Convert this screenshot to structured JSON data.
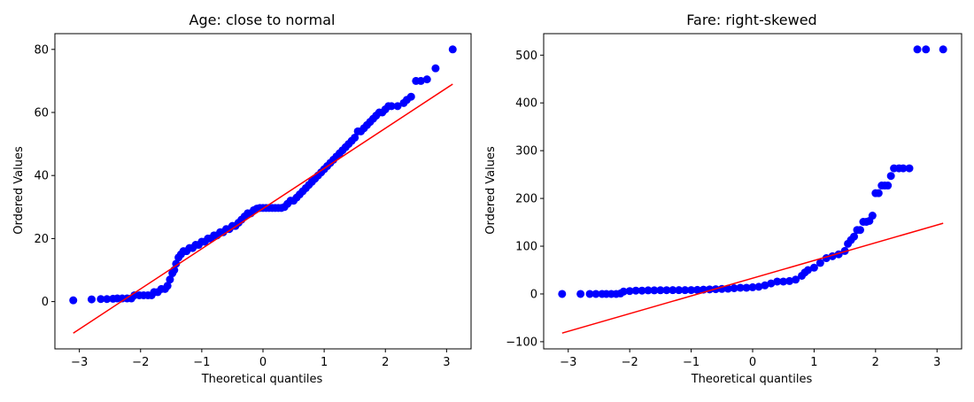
{
  "chart_data": [
    {
      "type": "scatter",
      "title": "Age: close to normal",
      "xlabel": "Theoretical quantiles",
      "ylabel": "Ordered Values",
      "xlim": [
        -3.4,
        3.4
      ],
      "ylim": [
        -15,
        85
      ],
      "xticks": [
        -3,
        -2,
        -1,
        0,
        1,
        2,
        3
      ],
      "yticks": [
        0,
        20,
        40,
        60,
        80
      ],
      "grid": false,
      "marker_color": "#0000ff",
      "line_color": "#ff0000",
      "fit_line": {
        "x": [
          -3.1,
          3.1
        ],
        "y": [
          -10,
          69
        ]
      },
      "points": [
        [
          -3.1,
          0.4
        ],
        [
          -2.8,
          0.7
        ],
        [
          -2.65,
          0.8
        ],
        [
          -2.55,
          0.8
        ],
        [
          -2.45,
          0.9
        ],
        [
          -2.38,
          1
        ],
        [
          -2.3,
          1
        ],
        [
          -2.22,
          1
        ],
        [
          -2.15,
          1
        ],
        [
          -2.1,
          2
        ],
        [
          -2.02,
          2
        ],
        [
          -1.95,
          2
        ],
        [
          -1.88,
          2
        ],
        [
          -1.82,
          2
        ],
        [
          -1.78,
          3
        ],
        [
          -1.72,
          3
        ],
        [
          -1.66,
          4
        ],
        [
          -1.6,
          4
        ],
        [
          -1.56,
          5
        ],
        [
          -1.52,
          7
        ],
        [
          -1.48,
          9
        ],
        [
          -1.45,
          10
        ],
        [
          -1.42,
          12
        ],
        [
          -1.38,
          14
        ],
        [
          -1.34,
          15
        ],
        [
          -1.3,
          16
        ],
        [
          -1.25,
          16
        ],
        [
          -1.2,
          17
        ],
        [
          -1.15,
          17
        ],
        [
          -1.1,
          18
        ],
        [
          -1.05,
          18
        ],
        [
          -1.0,
          19
        ],
        [
          -0.95,
          19
        ],
        [
          -0.9,
          20
        ],
        [
          -0.85,
          20
        ],
        [
          -0.8,
          21
        ],
        [
          -0.75,
          21
        ],
        [
          -0.7,
          22
        ],
        [
          -0.65,
          22
        ],
        [
          -0.6,
          23
        ],
        [
          -0.55,
          23
        ],
        [
          -0.5,
          24
        ],
        [
          -0.45,
          24
        ],
        [
          -0.4,
          25
        ],
        [
          -0.35,
          26
        ],
        [
          -0.3,
          27
        ],
        [
          -0.25,
          28
        ],
        [
          -0.2,
          28
        ],
        [
          -0.15,
          29
        ],
        [
          -0.1,
          29.5
        ],
        [
          -0.05,
          29.7
        ],
        [
          0.0,
          29.7
        ],
        [
          0.05,
          29.7
        ],
        [
          0.1,
          29.7
        ],
        [
          0.15,
          29.7
        ],
        [
          0.2,
          29.7
        ],
        [
          0.25,
          29.7
        ],
        [
          0.3,
          29.7
        ],
        [
          0.35,
          30
        ],
        [
          0.4,
          31
        ],
        [
          0.45,
          32
        ],
        [
          0.5,
          32
        ],
        [
          0.55,
          33
        ],
        [
          0.6,
          34
        ],
        [
          0.65,
          35
        ],
        [
          0.7,
          36
        ],
        [
          0.75,
          37
        ],
        [
          0.8,
          38
        ],
        [
          0.85,
          39
        ],
        [
          0.9,
          40
        ],
        [
          0.95,
          41
        ],
        [
          1.0,
          42
        ],
        [
          1.05,
          43
        ],
        [
          1.1,
          44
        ],
        [
          1.15,
          45
        ],
        [
          1.2,
          46
        ],
        [
          1.25,
          47
        ],
        [
          1.3,
          48
        ],
        [
          1.35,
          49
        ],
        [
          1.4,
          50
        ],
        [
          1.45,
          51
        ],
        [
          1.5,
          52
        ],
        [
          1.55,
          54
        ],
        [
          1.6,
          54
        ],
        [
          1.65,
          55
        ],
        [
          1.7,
          56
        ],
        [
          1.75,
          57
        ],
        [
          1.8,
          58
        ],
        [
          1.85,
          59
        ],
        [
          1.9,
          60
        ],
        [
          1.95,
          60
        ],
        [
          2.0,
          61
        ],
        [
          2.05,
          62
        ],
        [
          2.1,
          62
        ],
        [
          2.2,
          62
        ],
        [
          2.3,
          63
        ],
        [
          2.35,
          64
        ],
        [
          2.42,
          65
        ],
        [
          2.5,
          70
        ],
        [
          2.58,
          70
        ],
        [
          2.68,
          70.5
        ],
        [
          2.82,
          74
        ],
        [
          3.1,
          80
        ]
      ]
    },
    {
      "type": "scatter",
      "title": "Fare: right-skewed",
      "xlabel": "Theoretical quantiles",
      "ylabel": "Ordered Values",
      "xlim": [
        -3.4,
        3.4
      ],
      "ylim": [
        -115,
        545
      ],
      "xticks": [
        -3,
        -2,
        -1,
        0,
        1,
        2,
        3
      ],
      "yticks": [
        -100,
        0,
        100,
        200,
        300,
        400,
        500
      ],
      "grid": false,
      "marker_color": "#0000ff",
      "line_color": "#ff0000",
      "fit_line": {
        "x": [
          -3.1,
          3.1
        ],
        "y": [
          -82,
          148
        ]
      },
      "points": [
        [
          -3.1,
          0
        ],
        [
          -2.8,
          0
        ],
        [
          -2.65,
          0
        ],
        [
          -2.55,
          0
        ],
        [
          -2.45,
          0
        ],
        [
          -2.38,
          0
        ],
        [
          -2.3,
          0
        ],
        [
          -2.22,
          0
        ],
        [
          -2.15,
          1
        ],
        [
          -2.1,
          5
        ],
        [
          -2.0,
          6
        ],
        [
          -1.9,
          7
        ],
        [
          -1.8,
          7
        ],
        [
          -1.7,
          7.5
        ],
        [
          -1.6,
          7.5
        ],
        [
          -1.5,
          7.8
        ],
        [
          -1.4,
          7.9
        ],
        [
          -1.3,
          8
        ],
        [
          -1.2,
          8
        ],
        [
          -1.1,
          8
        ],
        [
          -1.0,
          8.1
        ],
        [
          -0.9,
          8.5
        ],
        [
          -0.8,
          9
        ],
        [
          -0.7,
          9.5
        ],
        [
          -0.6,
          10
        ],
        [
          -0.5,
          10.5
        ],
        [
          -0.4,
          11
        ],
        [
          -0.3,
          12
        ],
        [
          -0.2,
          13
        ],
        [
          -0.1,
          13
        ],
        [
          0.0,
          14
        ],
        [
          0.1,
          15
        ],
        [
          0.2,
          18
        ],
        [
          0.3,
          22
        ],
        [
          0.4,
          26
        ],
        [
          0.5,
          26
        ],
        [
          0.6,
          27
        ],
        [
          0.7,
          30
        ],
        [
          0.8,
          38
        ],
        [
          0.85,
          45
        ],
        [
          0.9,
          50
        ],
        [
          1.0,
          55
        ],
        [
          1.1,
          65
        ],
        [
          1.2,
          75
        ],
        [
          1.3,
          79
        ],
        [
          1.4,
          83
        ],
        [
          1.5,
          90
        ],
        [
          1.55,
          105
        ],
        [
          1.6,
          113
        ],
        [
          1.65,
          120
        ],
        [
          1.7,
          134
        ],
        [
          1.75,
          134
        ],
        [
          1.8,
          151
        ],
        [
          1.85,
          151
        ],
        [
          1.9,
          153
        ],
        [
          1.95,
          164
        ],
        [
          2.0,
          211
        ],
        [
          2.05,
          211
        ],
        [
          2.1,
          227
        ],
        [
          2.15,
          227
        ],
        [
          2.2,
          227
        ],
        [
          2.25,
          247
        ],
        [
          2.3,
          263
        ],
        [
          2.38,
          263
        ],
        [
          2.45,
          263
        ],
        [
          2.55,
          263
        ],
        [
          2.68,
          512
        ],
        [
          2.82,
          512
        ],
        [
          3.1,
          512
        ]
      ]
    }
  ]
}
